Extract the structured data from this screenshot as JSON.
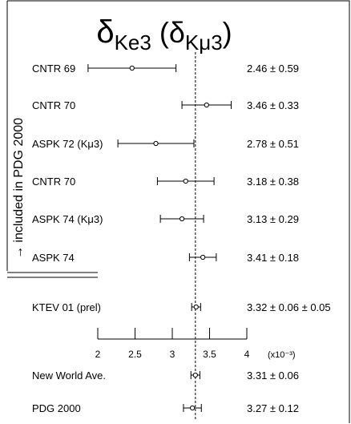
{
  "chart_data": {
    "type": "scatter",
    "title_main": "δ",
    "title_sub1": "Ke3",
    "title_paren_open": " (δ",
    "title_sub2": "Kμ3",
    "title_paren_close": ")",
    "side_label": "→ included in PDG 2000",
    "reference_value": 3.31,
    "xlim": [
      2,
      4
    ],
    "axis_ticks": [
      2,
      2.5,
      3,
      3.5,
      4
    ],
    "axis_tick_labels": [
      "2",
      "2.5",
      "3",
      "3.5",
      "4"
    ],
    "axis_unit_label": "(x10⁻³)",
    "measurements": [
      {
        "label": "CNTR 69",
        "value": 2.46,
        "error": 0.59,
        "value_text": "2.46 ± 0.59"
      },
      {
        "label": "CNTR 70",
        "value": 3.46,
        "error": 0.33,
        "value_text": "3.46 ± 0.33"
      },
      {
        "label": "ASPK 72 (Kμ3)",
        "value": 2.78,
        "error": 0.51,
        "value_text": "2.78 ± 0.51"
      },
      {
        "label": "CNTR 70",
        "value": 3.18,
        "error": 0.38,
        "value_text": "3.18 ± 0.38"
      },
      {
        "label": "ASPK 74 (Kμ3)",
        "value": 3.13,
        "error": 0.29,
        "value_text": "3.13 ± 0.29"
      },
      {
        "label": "ASPK 74",
        "value": 3.41,
        "error": 0.18,
        "value_text": "3.41 ± 0.18"
      },
      {
        "label": "KTEV 01 (prel)",
        "value": 3.32,
        "error": 0.06,
        "value_text": "3.32 ± 0.06 ± 0.05"
      }
    ],
    "averages": [
      {
        "label": "New World Ave.",
        "value": 3.31,
        "error": 0.06,
        "value_text": "3.31 ± 0.06"
      },
      {
        "label": "PDG 2000",
        "value": 3.27,
        "error": 0.12,
        "value_text": "3.27 ± 0.12"
      }
    ]
  }
}
